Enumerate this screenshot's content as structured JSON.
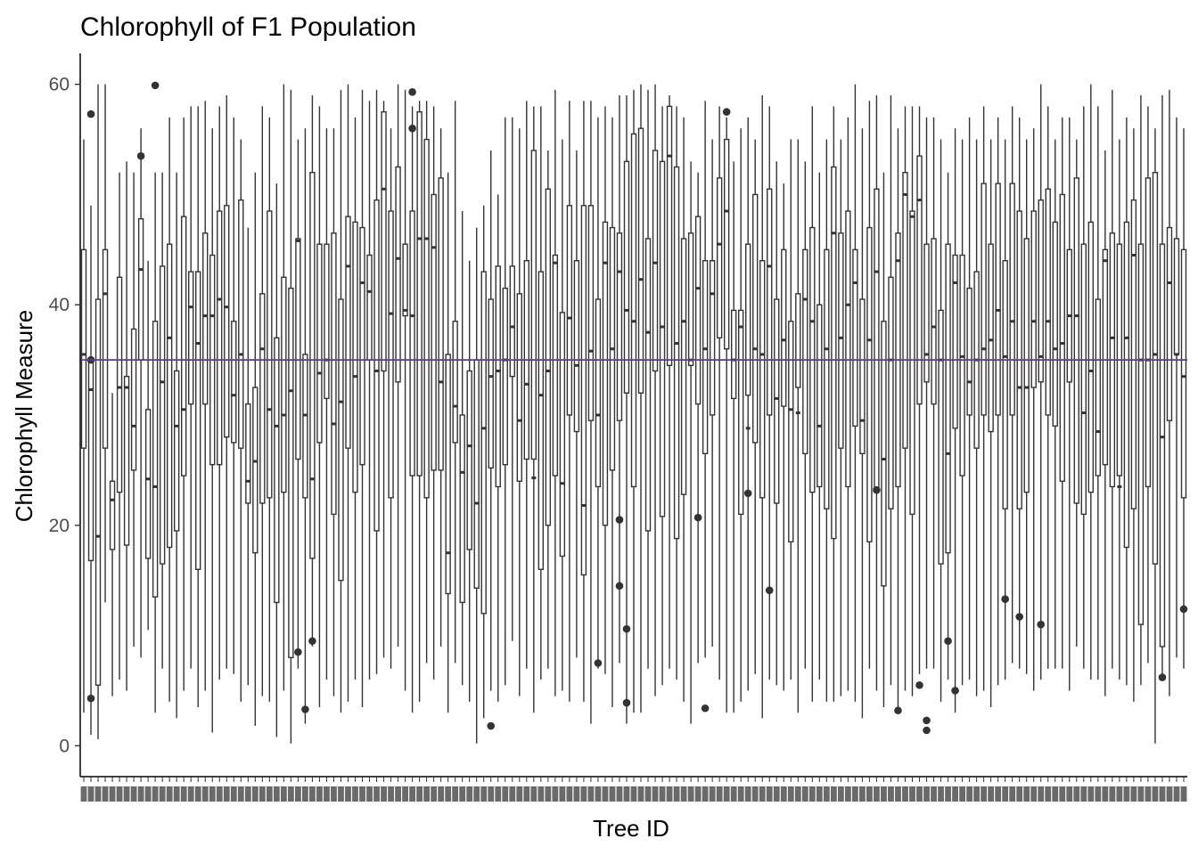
{
  "chart_data": {
    "type": "boxplot",
    "title": "Chlorophyll of F1 Population",
    "xlabel": "Tree ID",
    "ylabel": "Chlorophyll Measure",
    "ylim": [
      -2.8,
      62.8
    ],
    "yticks": [
      0,
      20,
      40,
      60
    ],
    "reference_line": {
      "y": 35,
      "color": "#5b3f8c"
    },
    "box_color": "#333333",
    "outlier_color": "#333333",
    "grid": false,
    "legend": "none",
    "category_count": 155,
    "category_labels_legible": false,
    "boxes": [
      [
        3,
        27,
        35.5,
        45,
        55
      ],
      [
        1,
        16.8,
        32.3,
        35,
        49
      ],
      [
        0.6,
        5.5,
        19,
        40.5,
        60
      ],
      [
        13,
        27,
        41,
        45,
        60
      ],
      [
        4.5,
        17.8,
        22.3,
        24,
        32
      ],
      [
        6,
        23,
        32.5,
        42.5,
        52
      ],
      [
        5,
        18.2,
        32.5,
        33.5,
        53
      ],
      [
        9,
        25,
        29,
        37.8,
        52
      ],
      [
        8,
        35,
        43.2,
        47.8,
        56
      ],
      [
        10.5,
        17,
        24.2,
        30.5,
        44
      ],
      [
        3,
        13.5,
        23.5,
        38.5,
        52
      ],
      [
        7,
        16.5,
        33,
        43.5,
        52
      ],
      [
        4,
        18,
        37,
        45.5,
        57
      ],
      [
        2.5,
        19.5,
        29,
        34,
        52
      ],
      [
        5,
        24.5,
        30.5,
        48,
        57
      ],
      [
        7,
        31,
        39.8,
        43,
        58
      ],
      [
        3.5,
        16,
        36.5,
        43,
        58
      ],
      [
        5,
        31,
        39,
        46.5,
        58.5
      ],
      [
        1.2,
        25.5,
        39,
        44.5,
        56
      ],
      [
        6,
        25.5,
        40.5,
        48.5,
        58
      ],
      [
        7,
        28,
        39.8,
        49,
        59
      ],
      [
        6.5,
        27.5,
        31.8,
        38.5,
        57
      ],
      [
        4,
        27,
        35.5,
        49.5,
        55
      ],
      [
        5.5,
        22,
        24,
        31,
        47
      ],
      [
        1.8,
        17.5,
        25.8,
        32.5,
        52
      ],
      [
        4.5,
        22,
        36,
        41,
        58
      ],
      [
        4,
        22.5,
        30.5,
        48.5,
        57
      ],
      [
        0.8,
        13,
        29,
        37,
        51
      ],
      [
        5,
        23,
        30,
        42.5,
        60
      ],
      [
        0.2,
        8,
        32.2,
        41.5,
        59.5
      ],
      [
        7,
        26,
        45.8,
        46,
        55
      ],
      [
        2,
        22.5,
        30,
        35.5,
        56
      ],
      [
        9,
        17,
        24.2,
        52,
        59
      ],
      [
        3.5,
        27.5,
        33.8,
        45.5,
        58
      ],
      [
        6,
        31.5,
        35,
        45.5,
        56
      ],
      [
        4.5,
        21,
        29.2,
        46.5,
        56
      ],
      [
        3,
        15,
        31.2,
        40.5,
        59.5
      ],
      [
        4,
        27,
        43.5,
        48,
        60
      ],
      [
        6,
        23,
        33.5,
        47.5,
        57
      ],
      [
        3.5,
        25.5,
        42,
        47,
        59.5
      ],
      [
        6,
        35,
        41.2,
        44.5,
        58.5
      ],
      [
        6.5,
        19.5,
        34,
        49.5,
        59.5
      ],
      [
        8,
        34,
        50.5,
        57.5,
        58.5
      ],
      [
        7,
        22.5,
        39.2,
        48.5,
        56
      ],
      [
        9,
        33,
        44.2,
        52.5,
        60
      ],
      [
        5,
        39,
        39.5,
        45.5,
        59.5
      ],
      [
        3,
        24.5,
        39,
        48.5,
        58
      ],
      [
        4,
        24.5,
        46,
        57.5,
        58.5
      ],
      [
        7.5,
        22.5,
        46,
        55,
        58.5
      ],
      [
        6,
        25,
        45.2,
        50,
        58
      ],
      [
        9,
        25,
        33,
        51.5,
        56
      ],
      [
        3,
        13.8,
        17.5,
        35.5,
        52
      ],
      [
        7.5,
        27.5,
        30.8,
        38.5,
        58.5
      ],
      [
        5.5,
        13,
        24.8,
        30,
        48.5
      ],
      [
        4,
        17.8,
        27.2,
        34,
        44
      ],
      [
        0.2,
        14.3,
        22,
        35,
        47
      ],
      [
        2.5,
        12,
        28.8,
        43,
        49
      ],
      [
        5,
        25.2,
        33.5,
        40.5,
        54
      ],
      [
        4,
        23.5,
        34,
        43.5,
        50
      ],
      [
        5.5,
        25.5,
        35,
        41.5,
        57
      ],
      [
        9.5,
        33.5,
        38,
        43.5,
        57
      ],
      [
        4.5,
        24,
        29.5,
        41,
        56
      ],
      [
        7,
        26,
        32.8,
        44,
        58.5
      ],
      [
        3,
        26,
        24.3,
        54,
        58
      ],
      [
        6,
        16,
        31.8,
        43,
        58
      ],
      [
        7,
        20,
        34,
        50.5,
        54
      ],
      [
        4.5,
        24.5,
        43.8,
        44.5,
        59.5
      ],
      [
        5,
        17.2,
        23.8,
        39.3,
        55
      ],
      [
        4,
        30,
        38.8,
        49,
        58.5
      ],
      [
        8,
        28.5,
        34.5,
        44,
        54
      ],
      [
        4,
        15.5,
        21.8,
        49,
        58.5
      ],
      [
        2,
        29.5,
        35.8,
        49,
        58.5
      ],
      [
        7,
        23.5,
        30,
        40.5,
        57
      ],
      [
        6.5,
        20,
        43.8,
        47.5,
        58
      ],
      [
        3.5,
        25,
        36,
        47,
        57
      ],
      [
        7.5,
        29.5,
        43,
        46.5,
        59
      ],
      [
        2,
        32,
        39.5,
        53,
        59
      ],
      [
        3,
        23.5,
        38.5,
        55.5,
        59.5
      ],
      [
        3,
        32,
        42.3,
        56,
        60
      ],
      [
        7,
        19.5,
        37.5,
        46,
        59.5
      ],
      [
        4.5,
        34,
        43.8,
        54,
        60
      ],
      [
        5.5,
        20.8,
        38,
        53,
        58
      ],
      [
        7,
        34.5,
        53.5,
        58,
        59
      ],
      [
        6,
        18.8,
        36.5,
        52.5,
        58
      ],
      [
        4,
        22.8,
        38.5,
        46,
        57
      ],
      [
        2,
        34.5,
        35,
        46.5,
        53
      ],
      [
        7.5,
        31,
        41.5,
        48,
        52
      ],
      [
        8,
        26.5,
        36,
        44,
        58.5
      ],
      [
        9,
        30,
        41,
        44,
        55
      ],
      [
        6,
        37,
        45.5,
        51.5,
        58
      ],
      [
        3,
        36,
        48.5,
        55,
        57
      ],
      [
        3,
        31.5,
        35,
        39.5,
        53
      ],
      [
        4,
        21,
        38,
        39.5,
        56
      ],
      [
        5,
        31.8,
        28.8,
        45.5,
        57
      ],
      [
        6.5,
        27.5,
        36,
        50,
        55
      ],
      [
        2.5,
        22.5,
        35.5,
        44,
        59
      ],
      [
        6,
        30,
        43.5,
        50.5,
        58
      ],
      [
        5.5,
        22,
        31.5,
        40.5,
        53
      ],
      [
        5,
        30.8,
        36.8,
        45,
        51
      ],
      [
        6,
        18.5,
        30.5,
        38.5,
        55
      ],
      [
        3,
        32.5,
        30.2,
        41,
        55
      ],
      [
        7,
        26.5,
        40.5,
        45,
        53
      ],
      [
        4,
        23,
        38.5,
        47,
        58
      ],
      [
        6,
        23.5,
        29,
        40,
        52
      ],
      [
        4,
        21.5,
        36,
        45,
        55
      ],
      [
        4,
        18.8,
        46.5,
        52.5,
        58
      ],
      [
        4.5,
        27,
        37,
        46.5,
        55
      ],
      [
        5,
        23.5,
        40,
        48.5,
        57
      ],
      [
        4,
        29,
        42,
        45,
        60
      ],
      [
        2.5,
        26.5,
        29.5,
        40.5,
        56
      ],
      [
        7,
        18.5,
        36.8,
        47,
        58.5
      ],
      [
        5,
        23,
        43,
        50.5,
        59
      ],
      [
        3.5,
        14.5,
        26,
        38.5,
        52
      ],
      [
        5.5,
        21.5,
        35,
        42.5,
        59
      ],
      [
        3,
        23.5,
        44,
        46.5,
        56
      ],
      [
        5,
        27,
        50,
        52,
        58
      ],
      [
        4.5,
        21,
        48,
        48.5,
        58
      ],
      [
        6.5,
        31,
        49.5,
        53.5,
        58
      ],
      [
        7,
        33,
        35.5,
        45.5,
        57
      ],
      [
        7,
        31,
        38,
        46,
        57
      ],
      [
        4,
        16.5,
        35,
        39.5,
        55
      ],
      [
        6,
        17.5,
        26.5,
        45.5,
        52
      ],
      [
        3,
        28.8,
        42,
        44.5,
        56
      ],
      [
        5.5,
        24.5,
        35.3,
        44.5,
        55
      ],
      [
        6,
        30,
        33,
        41.5,
        57
      ],
      [
        4.5,
        27,
        35,
        43,
        55
      ],
      [
        5,
        30,
        36,
        51,
        58
      ],
      [
        3.5,
        28.5,
        36.8,
        45.5,
        55
      ],
      [
        5.5,
        30,
        39.5,
        51,
        57
      ],
      [
        6,
        21.5,
        35.3,
        44,
        55
      ],
      [
        7.5,
        30,
        38.5,
        51,
        58
      ],
      [
        7,
        21.5,
        32.5,
        48.5,
        57
      ],
      [
        6.5,
        23,
        32.5,
        46,
        55
      ],
      [
        5,
        32.5,
        38.5,
        48.5,
        56
      ],
      [
        6,
        33,
        35.3,
        49.5,
        60
      ],
      [
        7,
        30,
        38.5,
        50.5,
        58
      ],
      [
        7,
        29,
        36,
        47.5,
        55
      ],
      [
        7,
        24,
        36.5,
        50,
        57
      ],
      [
        5,
        33,
        39,
        45,
        57
      ],
      [
        9,
        22,
        39,
        51.5,
        55
      ],
      [
        7,
        21,
        30.2,
        45.5,
        58
      ],
      [
        6,
        23,
        34,
        47.5,
        60
      ],
      [
        6,
        24.5,
        28.5,
        40.5,
        58
      ],
      [
        4.5,
        25.5,
        44,
        45,
        54
      ],
      [
        7,
        23.5,
        37,
        46.5,
        59.5
      ],
      [
        6,
        24.5,
        23.5,
        45.5,
        55
      ],
      [
        5.5,
        18,
        37,
        47.5,
        57
      ],
      [
        4,
        21.5,
        44.5,
        49.5,
        56
      ],
      [
        5.5,
        11,
        35,
        45.5,
        59
      ],
      [
        7.5,
        23.5,
        35,
        51.5,
        58
      ],
      [
        0.2,
        16.5,
        35.5,
        52,
        56
      ],
      [
        6.5,
        9,
        28,
        45.5,
        59
      ],
      [
        4.5,
        29.5,
        42,
        47,
        59.5
      ],
      [
        8,
        35.5,
        35.5,
        46,
        57
      ],
      [
        7,
        22.5,
        33.5,
        45,
        56
      ]
    ],
    "outliers": [
      [
        1,
        57.3
      ],
      [
        1,
        35
      ],
      [
        1,
        4.3
      ],
      [
        11,
        53.5
      ],
      [
        14,
        59.9
      ],
      [
        44,
        8.5
      ],
      [
        45,
        3.3
      ],
      [
        46,
        9.5
      ],
      [
        66,
        56
      ],
      [
        67,
        59.3
      ],
      [
        82,
        1.8
      ],
      [
        104,
        7.5
      ],
      [
        109,
        20.5
      ],
      [
        109,
        14.5
      ],
      [
        110,
        10.6
      ],
      [
        110,
        3.9
      ],
      [
        125,
        20.7
      ],
      [
        126,
        3.4
      ],
      [
        130,
        57.5
      ],
      [
        134,
        22.9
      ],
      [
        139,
        14.1
      ],
      [
        160,
        23.2
      ],
      [
        165,
        3.2
      ],
      [
        169,
        5.5
      ],
      [
        170,
        2.3
      ],
      [
        170,
        1.4
      ],
      [
        175,
        9.5
      ],
      [
        177,
        5
      ],
      [
        187,
        13.3
      ],
      [
        190,
        11.7
      ],
      [
        193,
        11
      ],
      [
        218,
        6.2
      ],
      [
        222,
        12.4
      ]
    ]
  }
}
